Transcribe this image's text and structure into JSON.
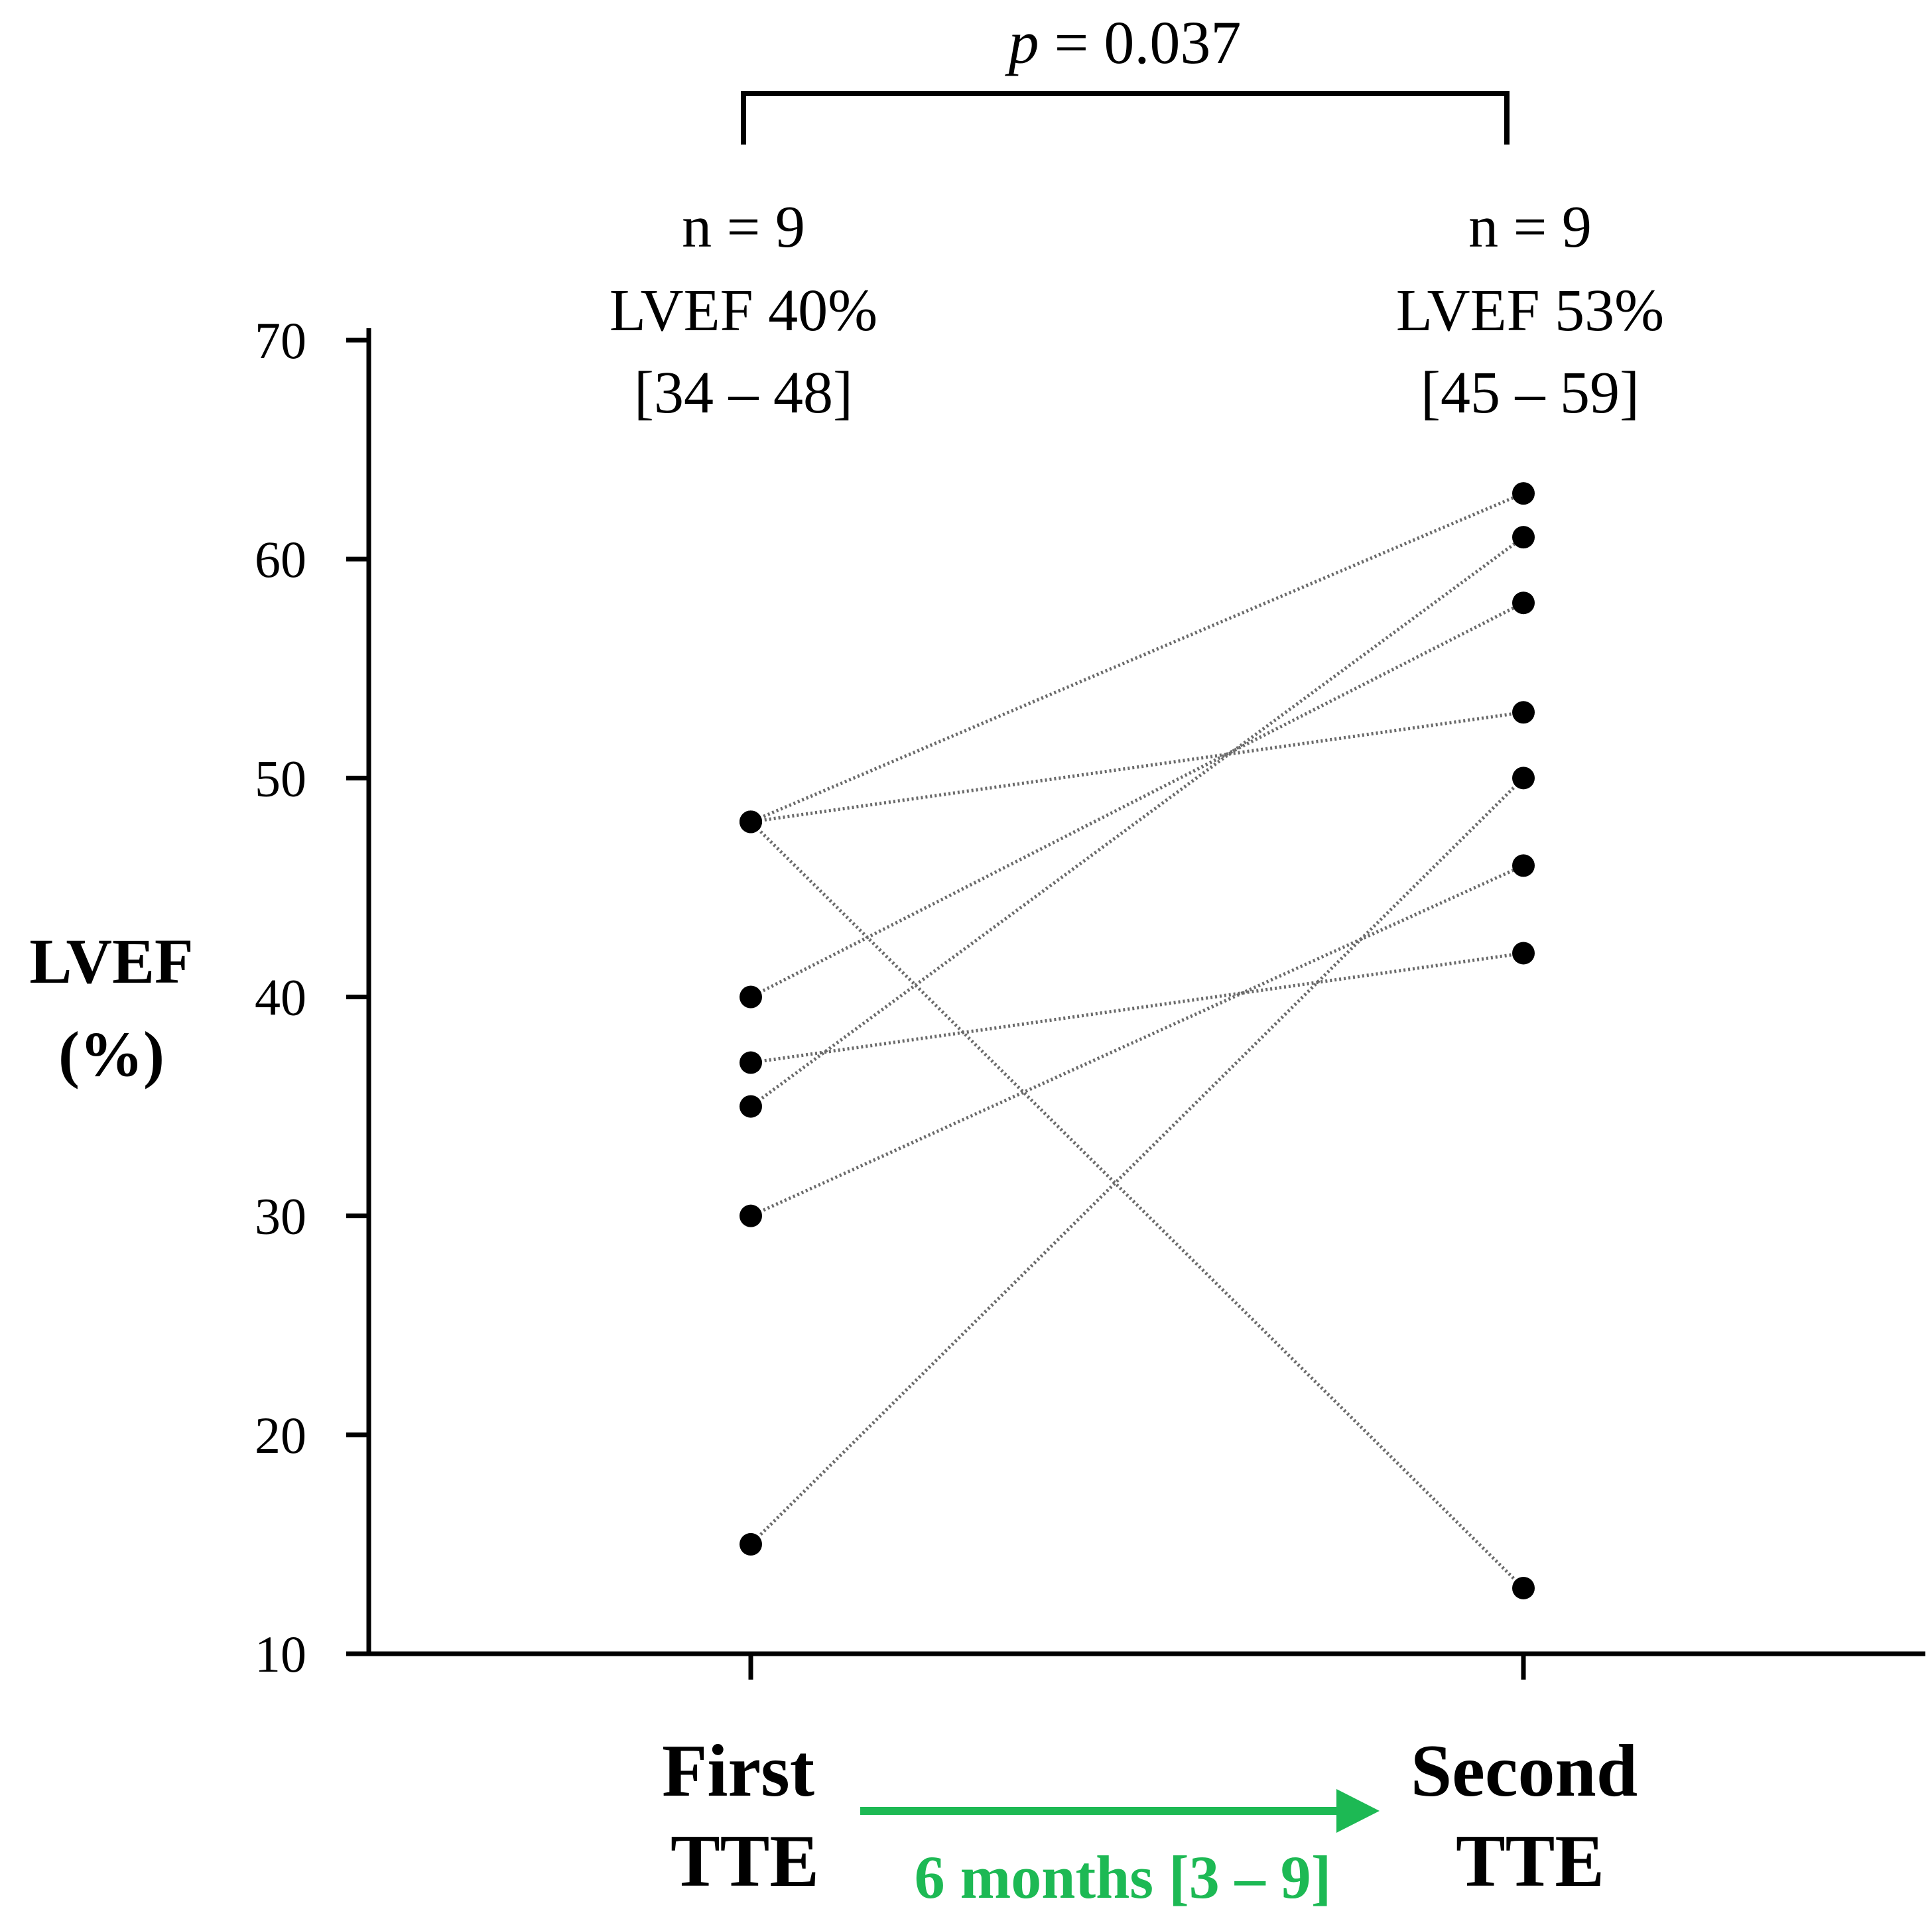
{
  "chart_data": {
    "type": "line",
    "title": "",
    "ylabel": "LVEF\n(%)",
    "ylabel_lines": [
      "LVEF",
      "(%)"
    ],
    "ylim": [
      10,
      70
    ],
    "yticks": [
      10,
      20,
      30,
      40,
      50,
      60,
      70
    ],
    "categories": [
      "First TTE",
      "Second TTE"
    ],
    "category_lines": [
      [
        "First",
        "TTE"
      ],
      [
        "Second",
        "TTE"
      ]
    ],
    "pairs": [
      {
        "first": 48,
        "second": 63
      },
      {
        "first": 48,
        "second": 53
      },
      {
        "first": 48,
        "second": 13
      },
      {
        "first": 40,
        "second": 58
      },
      {
        "first": 37,
        "second": 42
      },
      {
        "first": 35,
        "second": 61
      },
      {
        "first": 30,
        "second": 46
      },
      {
        "first": 15,
        "second": 50
      }
    ],
    "group_summaries": [
      {
        "n_label": "n = 9",
        "lvef_label": "LVEF 40%",
        "iqr_label": "[34 – 48]"
      },
      {
        "n_label": "n = 9",
        "lvef_label": "LVEF 53%",
        "iqr_label": "[45 – 59]"
      }
    ],
    "p_value": {
      "symbol": "p",
      "text": " = 0.037"
    },
    "interval_annotation": {
      "label": "6 months [3 – 9]",
      "color": "#1db954"
    }
  }
}
